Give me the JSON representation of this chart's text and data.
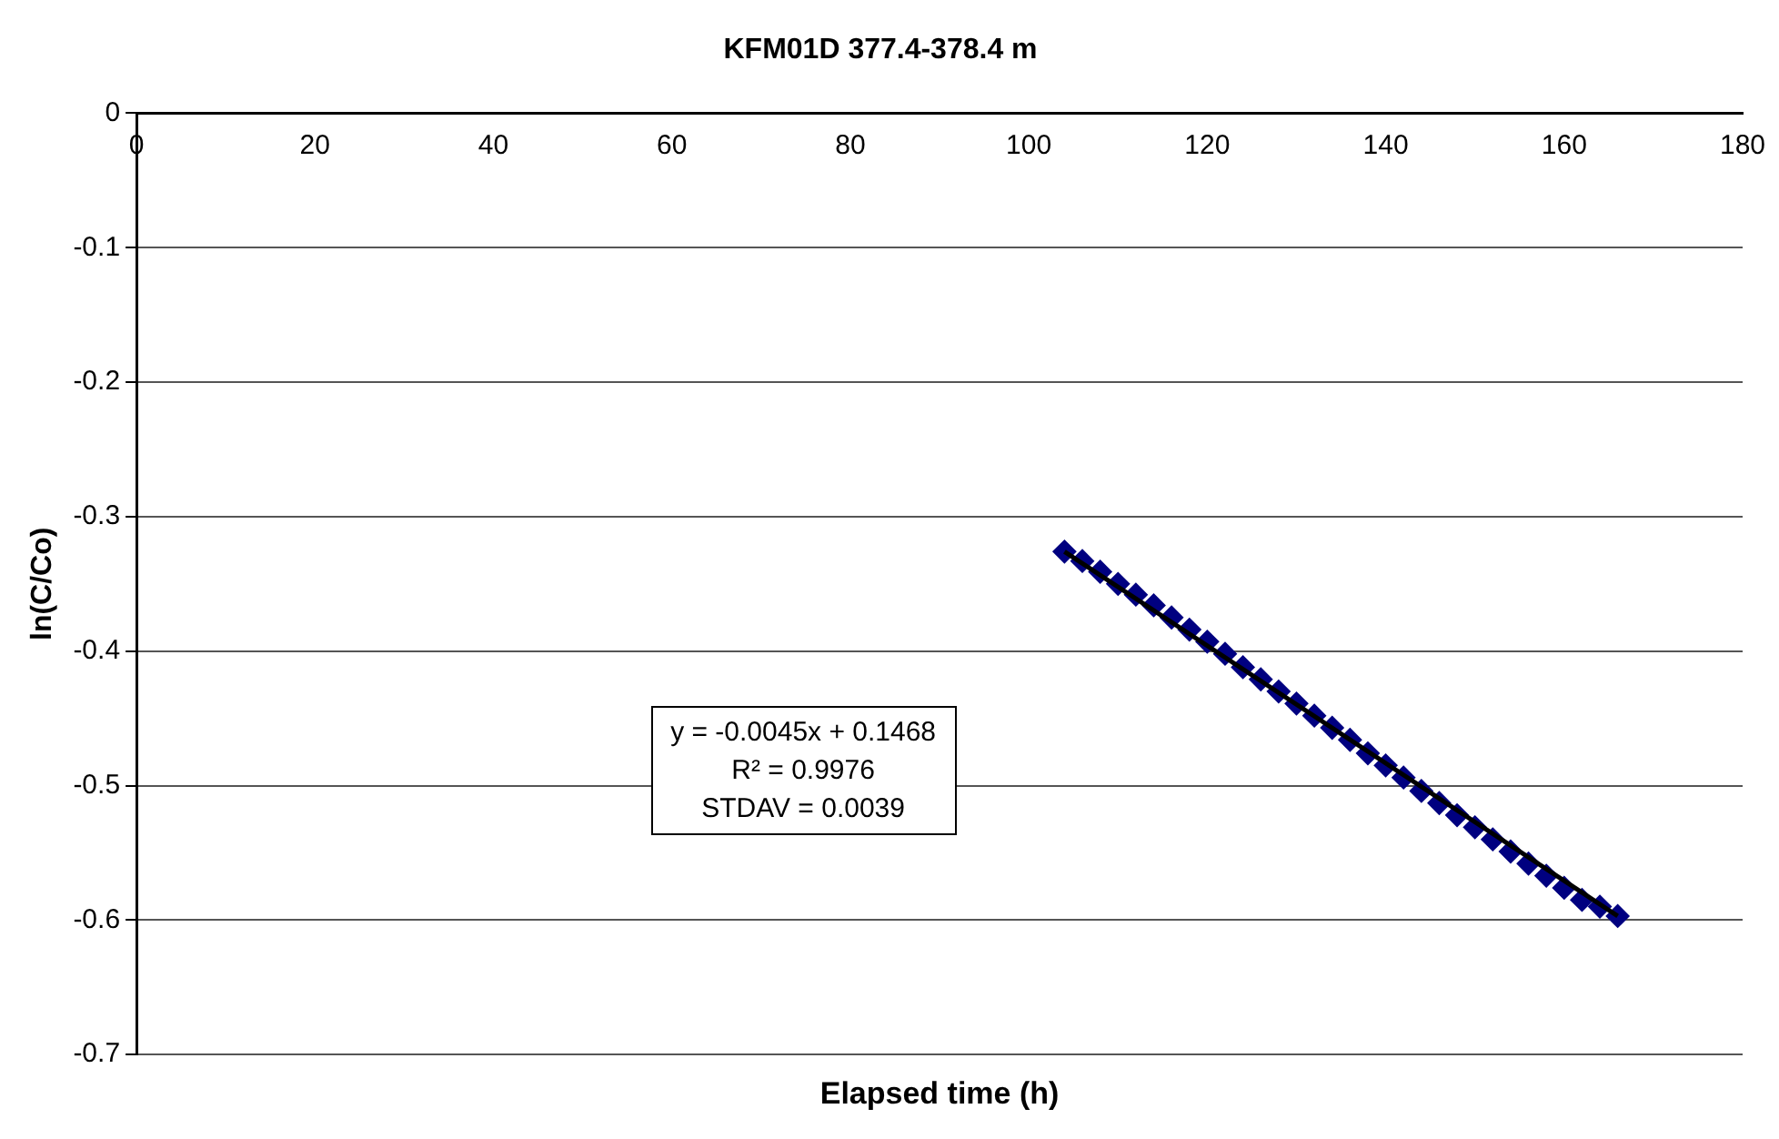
{
  "chart_data": {
    "type": "scatter",
    "title": "KFM01D 377.4-378.4 m",
    "xlabel": "Elapsed time (h)",
    "ylabel": "ln(C/Co)",
    "x": [
      104,
      106,
      108,
      110,
      112,
      114,
      116,
      118,
      120,
      122,
      124,
      126,
      128,
      130,
      132,
      134,
      136,
      138,
      140,
      142,
      144,
      146,
      148,
      150,
      152,
      154,
      156,
      158,
      160,
      162,
      164,
      166
    ],
    "series": [
      {
        "color": "#000080",
        "values": [
          -0.326,
          -0.333,
          -0.341,
          -0.35,
          -0.358,
          -0.366,
          -0.375,
          -0.384,
          -0.393,
          -0.402,
          -0.412,
          -0.421,
          -0.43,
          -0.439,
          -0.448,
          -0.457,
          -0.466,
          -0.476,
          -0.485,
          -0.494,
          -0.504,
          -0.513,
          -0.522,
          -0.531,
          -0.54,
          -0.549,
          -0.558,
          -0.567,
          -0.576,
          -0.585,
          -0.59,
          -0.597
        ]
      },
      {
        "type": "line",
        "color": "#000000",
        "x": [
          104,
          166
        ],
        "values": [
          -0.326,
          -0.597
        ],
        "marker": "none"
      }
    ],
    "xlim": [
      0,
      180
    ],
    "xticks": [
      0,
      20,
      40,
      60,
      80,
      100,
      120,
      140,
      160,
      180
    ],
    "ylim": [
      -0.7,
      0
    ],
    "yticks": [
      -0.7,
      -0.6,
      -0.5,
      -0.4,
      -0.3,
      -0.2,
      -0.1,
      0
    ],
    "grid": "y",
    "legend": false,
    "marker": "diamond",
    "annotations": [
      "y = -0.0045x + 0.1468",
      "R² = 0.9976",
      "STDAV = 0.0039"
    ]
  }
}
